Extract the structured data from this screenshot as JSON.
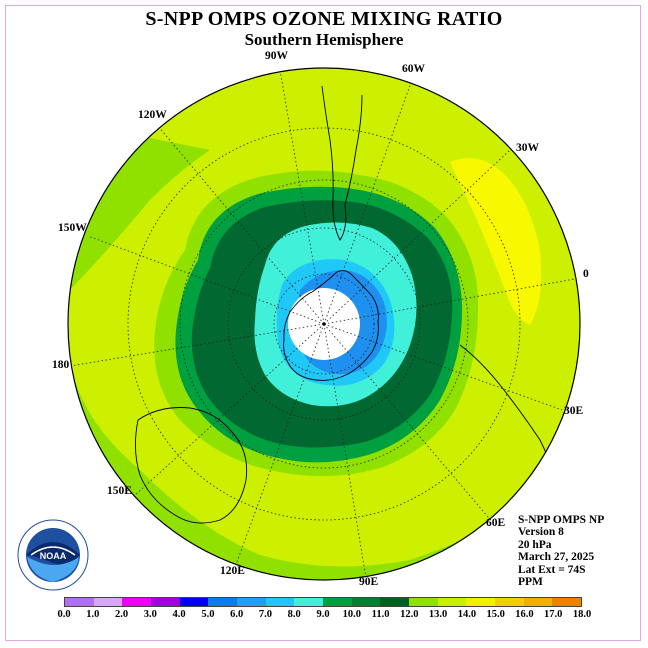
{
  "title": "S-NPP OMPS OZONE MIXING RATIO",
  "subtitle": "Southern Hemisphere",
  "longitude_labels": [
    "90W",
    "60W",
    "30W",
    "120W",
    "150W",
    "0",
    "180",
    "30E",
    "150E",
    "60E",
    "120E",
    "90E"
  ],
  "info": {
    "instrument": "S-NPP OMPS NP",
    "version": "Version 8",
    "level": "20 hPa",
    "date": "March 27, 2025",
    "lat_ext": "Lat Ext = 74S",
    "units": "PPM"
  },
  "logo_text": "NOAA",
  "colorbar": {
    "colors": [
      "#b070f0",
      "#d8a8f8",
      "#f000f0",
      "#a000e0",
      "#0000f0",
      "#0a7cf0",
      "#1ea0f8",
      "#20c8f8",
      "#40f0d8",
      "#00a040",
      "#008030",
      "#006020",
      "#90e000",
      "#c8f000",
      "#f0f000",
      "#f0d000",
      "#f0b000",
      "#f08000",
      "#f04000",
      "#f00000",
      "#a06040"
    ],
    "ticks": [
      "0.0",
      "1.0",
      "2.0",
      "3.0",
      "4.0",
      "5.0",
      "6.0",
      "7.0",
      "8.0",
      "9.0",
      "10.0",
      "11.0",
      "12.0",
      "13.0",
      "14.0",
      "15.0",
      "16.0",
      "17.0",
      "18.0"
    ]
  },
  "map_colors": {
    "background": "#ccf000",
    "light_green": "#90e000",
    "green": "#00a040",
    "dark_green": "#006830",
    "cyan": "#40f0d8",
    "light_blue": "#20c8f8",
    "blue": "#1e90f0",
    "yellow": "#f8f800",
    "no_data": "#ffffff"
  }
}
